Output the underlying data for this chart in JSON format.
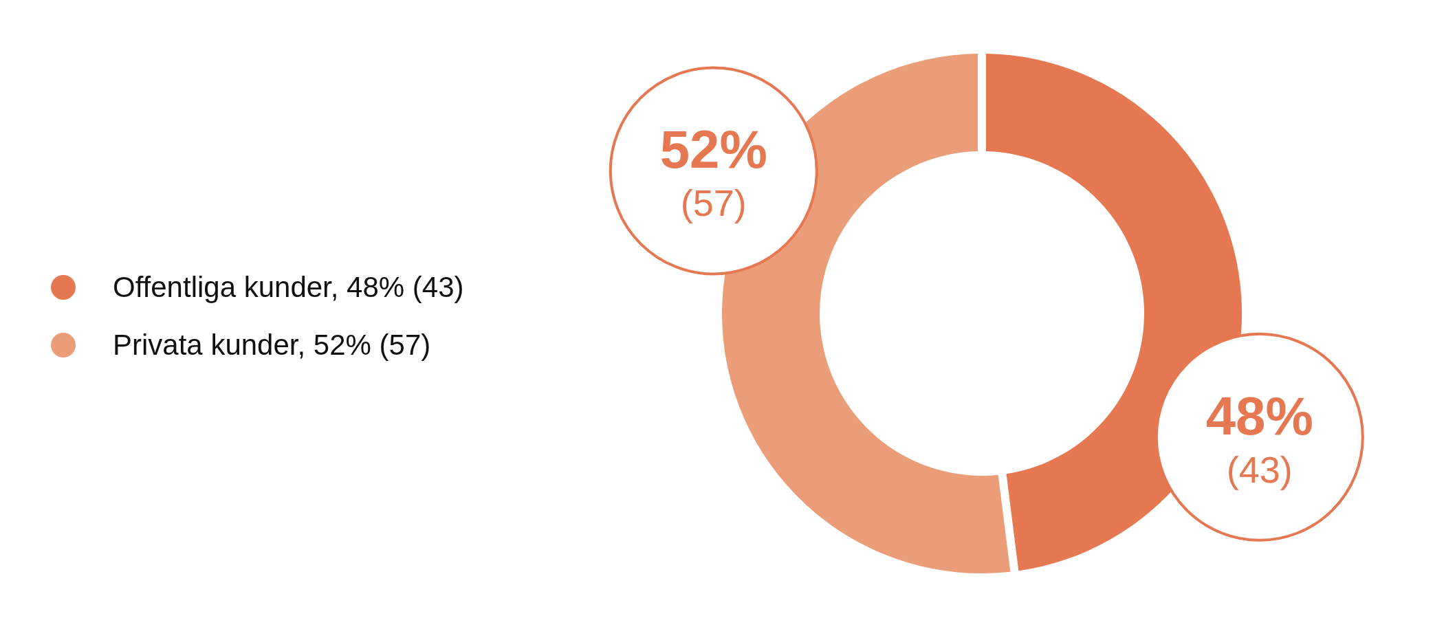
{
  "chart_data": {
    "type": "donut",
    "categories": [
      "Offentliga kunder, 48% (43)",
      "Privata kunder, 52% (57)"
    ],
    "values": [
      48,
      52
    ],
    "colors": [
      "#e57751",
      "#eb9d7a"
    ],
    "value_labels": [
      "48% (43)",
      "52% (57)"
    ],
    "legend": "left"
  }
}
